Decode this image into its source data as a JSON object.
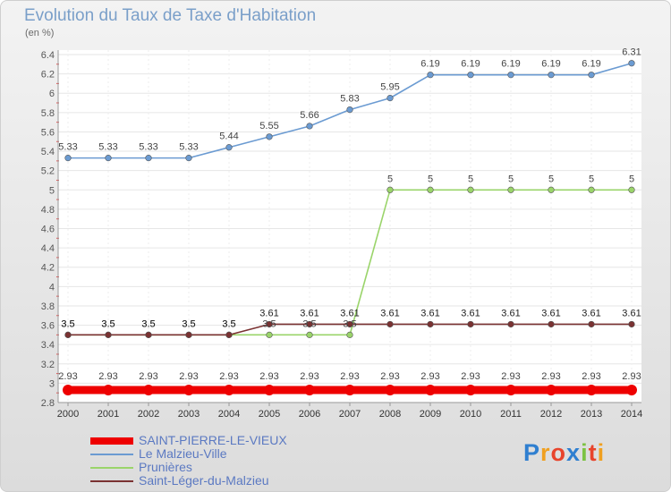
{
  "header": {
    "title": "Evolution du Taux de Taxe d'Habitation",
    "unit": "(en %)"
  },
  "chart_data": {
    "type": "line",
    "title": "Evolution du Taux de Taxe d'Habitation",
    "ylabel": "(en %)",
    "xlabel": "",
    "ylim": [
      2.8,
      6.4
    ],
    "yticks": [
      "2.8",
      "3",
      "3.2",
      "3.4",
      "3.6",
      "3.8",
      "4",
      "4.2",
      "4.4",
      "4.6",
      "4.8",
      "5",
      "5.2",
      "5.4",
      "5.6",
      "5.8",
      "6",
      "6.2",
      "6.4"
    ],
    "categories": [
      "2000",
      "2001",
      "2002",
      "2003",
      "2004",
      "2005",
      "2006",
      "2007",
      "2008",
      "2009",
      "2010",
      "2011",
      "2012",
      "2013",
      "2014"
    ],
    "series": [
      {
        "name": "SAINT-PIERRE-LE-VIEUX",
        "color": "#ee0000",
        "values": [
          2.93,
          2.93,
          2.93,
          2.93,
          2.93,
          2.93,
          2.93,
          2.93,
          2.93,
          2.93,
          2.93,
          2.93,
          2.93,
          2.93,
          2.93
        ],
        "labels": [
          "2.93",
          "2.93",
          "2.93",
          "2.93",
          "2.93",
          "2.93",
          "2.93",
          "2.93",
          "2.93",
          "2.93",
          "2.93",
          "2.93",
          "2.93",
          "2.93",
          "2.93"
        ]
      },
      {
        "name": "Le Malzieu-Ville",
        "color": "#6b9bd2",
        "values": [
          5.33,
          5.33,
          5.33,
          5.33,
          5.44,
          5.55,
          5.66,
          5.83,
          5.95,
          6.19,
          6.19,
          6.19,
          6.19,
          6.19,
          6.31
        ],
        "labels": [
          "5.33",
          "5.33",
          "5.33",
          "5.33",
          "5.44",
          "5.55",
          "5.66",
          "5.83",
          "5.95",
          "6.19",
          "6.19",
          "6.19",
          "6.19",
          "6.19",
          "6.31"
        ]
      },
      {
        "name": "Prunières",
        "color": "#9ad46a",
        "values": [
          3.5,
          3.5,
          3.5,
          3.5,
          3.5,
          3.5,
          3.5,
          3.5,
          5,
          5,
          5,
          5,
          5,
          5,
          5
        ],
        "labels": [
          "3.5",
          "3.5",
          "3.5",
          "3.5",
          "3.5",
          "3.5",
          "3.5",
          "3.5",
          "5",
          "5",
          "5",
          "5",
          "5",
          "5",
          "5"
        ]
      },
      {
        "name": "Saint-Léger-du-Malzieu",
        "color": "#7a3232",
        "values": [
          3.5,
          3.5,
          3.5,
          3.5,
          3.5,
          3.61,
          3.61,
          3.61,
          3.61,
          3.61,
          3.61,
          3.61,
          3.61,
          3.61,
          3.61
        ],
        "labels": [
          "3.5",
          "3.5",
          "3.5",
          "3.5",
          "3.5",
          "3.61",
          "3.61",
          "3.61",
          "3.61",
          "3.61",
          "3.61",
          "3.61",
          "3.61",
          "3.61",
          "3.61"
        ]
      }
    ]
  },
  "legend": [
    {
      "label": "SAINT-PIERRE-LE-VIEUX",
      "color": "#ee0000",
      "weight": "thick"
    },
    {
      "label": "Le Malzieu-Ville",
      "color": "#6b9bd2",
      "weight": "thin"
    },
    {
      "label": "Prunières",
      "color": "#9ad46a",
      "weight": "thin"
    },
    {
      "label": "Saint-Léger-du-Malzieu",
      "color": "#7a3232",
      "weight": "thin"
    }
  ],
  "logo": {
    "letters": [
      "P",
      "r",
      "o",
      "x",
      "i",
      "t",
      "i"
    ],
    "colors": [
      "#2f7fd0",
      "#f0a020",
      "#e8442c",
      "#2f7fd0",
      "#7cc242",
      "#e8442c",
      "#f0a020"
    ]
  }
}
